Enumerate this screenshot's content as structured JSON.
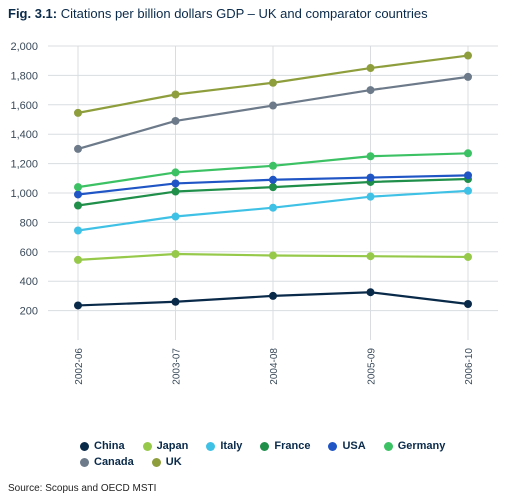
{
  "title_prefix": "Fig. 3.1:",
  "title_text": "Citations per billion dollars GDP – UK and comparator countries",
  "source_text": "Source: Scopus and OECD MSTI",
  "chart": {
    "type": "line",
    "background_color": "#ffffff",
    "grid_color": "#d9dde1",
    "axis_text_color": "#3a4a5a",
    "title_color": "#0a2a4a",
    "x_categories": [
      "2002-06",
      "2003-07",
      "2004-08",
      "2005-09",
      "2006-10"
    ],
    "ylim": [
      0,
      2000
    ],
    "yticks": [
      200,
      400,
      600,
      800,
      1000,
      1200,
      1400,
      1600,
      1800,
      2000
    ],
    "series": [
      {
        "name": "China",
        "color": "#0a2a4a",
        "values": [
          235,
          260,
          300,
          325,
          245
        ]
      },
      {
        "name": "Japan",
        "color": "#96c94a",
        "values": [
          545,
          585,
          575,
          570,
          565
        ]
      },
      {
        "name": "Italy",
        "color": "#3fc1e6",
        "values": [
          745,
          840,
          900,
          975,
          1015
        ]
      },
      {
        "name": "France",
        "color": "#1f8f4a",
        "values": [
          915,
          1010,
          1040,
          1075,
          1095
        ]
      },
      {
        "name": "USA",
        "color": "#1f55c4",
        "values": [
          990,
          1065,
          1090,
          1105,
          1120
        ]
      },
      {
        "name": "Germany",
        "color": "#3cc264",
        "values": [
          1040,
          1140,
          1185,
          1250,
          1270
        ]
      },
      {
        "name": "Canada",
        "color": "#6c7a8a",
        "values": [
          1300,
          1490,
          1595,
          1700,
          1790
        ]
      },
      {
        "name": "UK",
        "color": "#8f9e3d",
        "values": [
          1545,
          1670,
          1750,
          1850,
          1935
        ]
      }
    ],
    "legend_order": [
      "China",
      "Japan",
      "Italy",
      "France",
      "USA",
      "Germany",
      "Canada",
      "UK"
    ],
    "marker_radius": 4.0,
    "line_width": 2.2,
    "label_fontsize": 11,
    "title_fontsize": 13
  }
}
